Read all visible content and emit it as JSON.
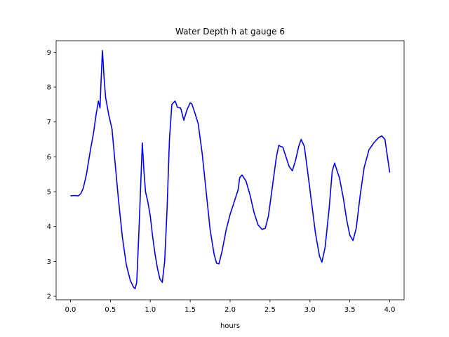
{
  "chart_data": {
    "type": "line",
    "title": "Water Depth h at gauge 6",
    "xlabel": "hours",
    "ylabel": "",
    "xlim": [
      -0.18,
      4.18
    ],
    "ylim": [
      1.9,
      9.33
    ],
    "xticks": [
      0.0,
      0.5,
      1.0,
      1.5,
      2.0,
      2.5,
      3.0,
      3.5,
      4.0
    ],
    "xtick_labels": [
      "0.0",
      "0.5",
      "1.0",
      "1.5",
      "2.0",
      "2.5",
      "3.0",
      "3.5",
      "4.0"
    ],
    "yticks": [
      2,
      3,
      4,
      5,
      6,
      7,
      8,
      9
    ],
    "ytick_labels": [
      "2",
      "3",
      "4",
      "5",
      "6",
      "7",
      "8",
      "9"
    ],
    "grid": false,
    "series": [
      {
        "color": "#0000ff",
        "x": [
          0.0,
          0.05,
          0.1,
          0.13,
          0.16,
          0.2,
          0.25,
          0.29,
          0.32,
          0.35,
          0.37,
          0.38,
          0.4,
          0.42,
          0.44,
          0.48,
          0.52,
          0.56,
          0.6,
          0.65,
          0.7,
          0.75,
          0.79,
          0.81,
          0.83,
          0.86,
          0.9,
          0.92,
          0.94,
          0.97,
          1.0,
          1.03,
          1.06,
          1.09,
          1.12,
          1.15,
          1.18,
          1.21,
          1.24,
          1.27,
          1.31,
          1.32,
          1.34,
          1.38,
          1.42,
          1.46,
          1.5,
          1.52,
          1.56,
          1.6,
          1.65,
          1.7,
          1.75,
          1.8,
          1.83,
          1.86,
          1.9,
          1.95,
          2.0,
          2.05,
          2.1,
          2.12,
          2.15,
          2.2,
          2.25,
          2.3,
          2.35,
          2.4,
          2.44,
          2.48,
          2.53,
          2.58,
          2.61,
          2.63,
          2.66,
          2.7,
          2.74,
          2.78,
          2.82,
          2.86,
          2.89,
          2.93,
          2.97,
          3.02,
          3.07,
          3.12,
          3.15,
          3.19,
          3.24,
          3.28,
          3.31,
          3.34,
          3.37,
          3.42,
          3.46,
          3.5,
          3.54,
          3.58,
          3.63,
          3.68,
          3.74,
          3.8,
          3.86,
          3.9,
          3.94,
          4.0
        ],
        "y": [
          4.88,
          4.89,
          4.88,
          4.95,
          5.1,
          5.5,
          6.2,
          6.7,
          7.2,
          7.6,
          7.4,
          8.0,
          9.05,
          8.3,
          7.7,
          7.2,
          6.8,
          5.8,
          4.8,
          3.7,
          2.9,
          2.45,
          2.26,
          2.22,
          2.4,
          4.0,
          6.4,
          5.6,
          5.0,
          4.7,
          4.3,
          3.7,
          3.2,
          2.8,
          2.5,
          2.4,
          3.0,
          4.5,
          6.5,
          7.5,
          7.6,
          7.55,
          7.42,
          7.4,
          7.05,
          7.35,
          7.55,
          7.52,
          7.25,
          6.95,
          6.1,
          5.0,
          3.9,
          3.2,
          2.95,
          2.93,
          3.3,
          3.9,
          4.35,
          4.7,
          5.05,
          5.4,
          5.48,
          5.3,
          4.9,
          4.4,
          4.05,
          3.92,
          3.95,
          4.3,
          5.15,
          6.0,
          6.33,
          6.3,
          6.28,
          6.0,
          5.72,
          5.6,
          5.9,
          6.3,
          6.5,
          6.3,
          5.6,
          4.7,
          3.8,
          3.15,
          2.98,
          3.4,
          4.5,
          5.6,
          5.82,
          5.6,
          5.4,
          4.8,
          4.2,
          3.75,
          3.6,
          3.95,
          4.9,
          5.7,
          6.2,
          6.4,
          6.55,
          6.6,
          6.5,
          5.55
        ]
      }
    ]
  }
}
